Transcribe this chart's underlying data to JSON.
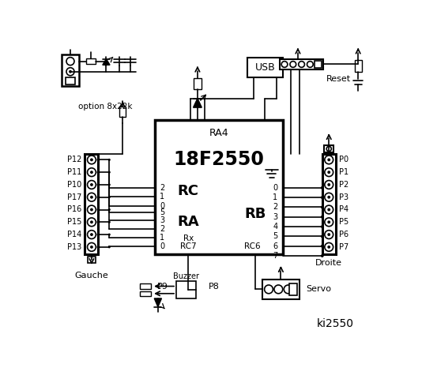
{
  "bg_color": "#ffffff",
  "line_color": "#000000",
  "title": "ki2550",
  "chip_label": "18F2550",
  "chip_sublabel": "RA4",
  "rc_label": "RC",
  "ra_label": "RA",
  "rb_label": "RB",
  "rx_label": "Rx",
  "rc7_label": "RC7",
  "rc6_label": "RC6",
  "left_pins": [
    "P12",
    "P11",
    "P10",
    "P17",
    "P16",
    "P15",
    "P14",
    "P13"
  ],
  "left_nums": [
    "2",
    "1",
    "0",
    "5",
    "3",
    "2",
    "1",
    "0"
  ],
  "right_pins": [
    "P0",
    "P1",
    "P2",
    "P3",
    "P4",
    "P5",
    "P6",
    "P7"
  ],
  "right_nums": [
    "0",
    "1",
    "2",
    "3",
    "4",
    "5",
    "6",
    "7"
  ],
  "gauche_label": "Gauche",
  "droite_label": "Droite",
  "buzzer_label": "Buzzer",
  "servo_label": "Servo",
  "usb_label": "USB",
  "reset_label": "Reset",
  "option_label": "option 8x22k",
  "p8_label": "P8",
  "p9_label": "P9"
}
